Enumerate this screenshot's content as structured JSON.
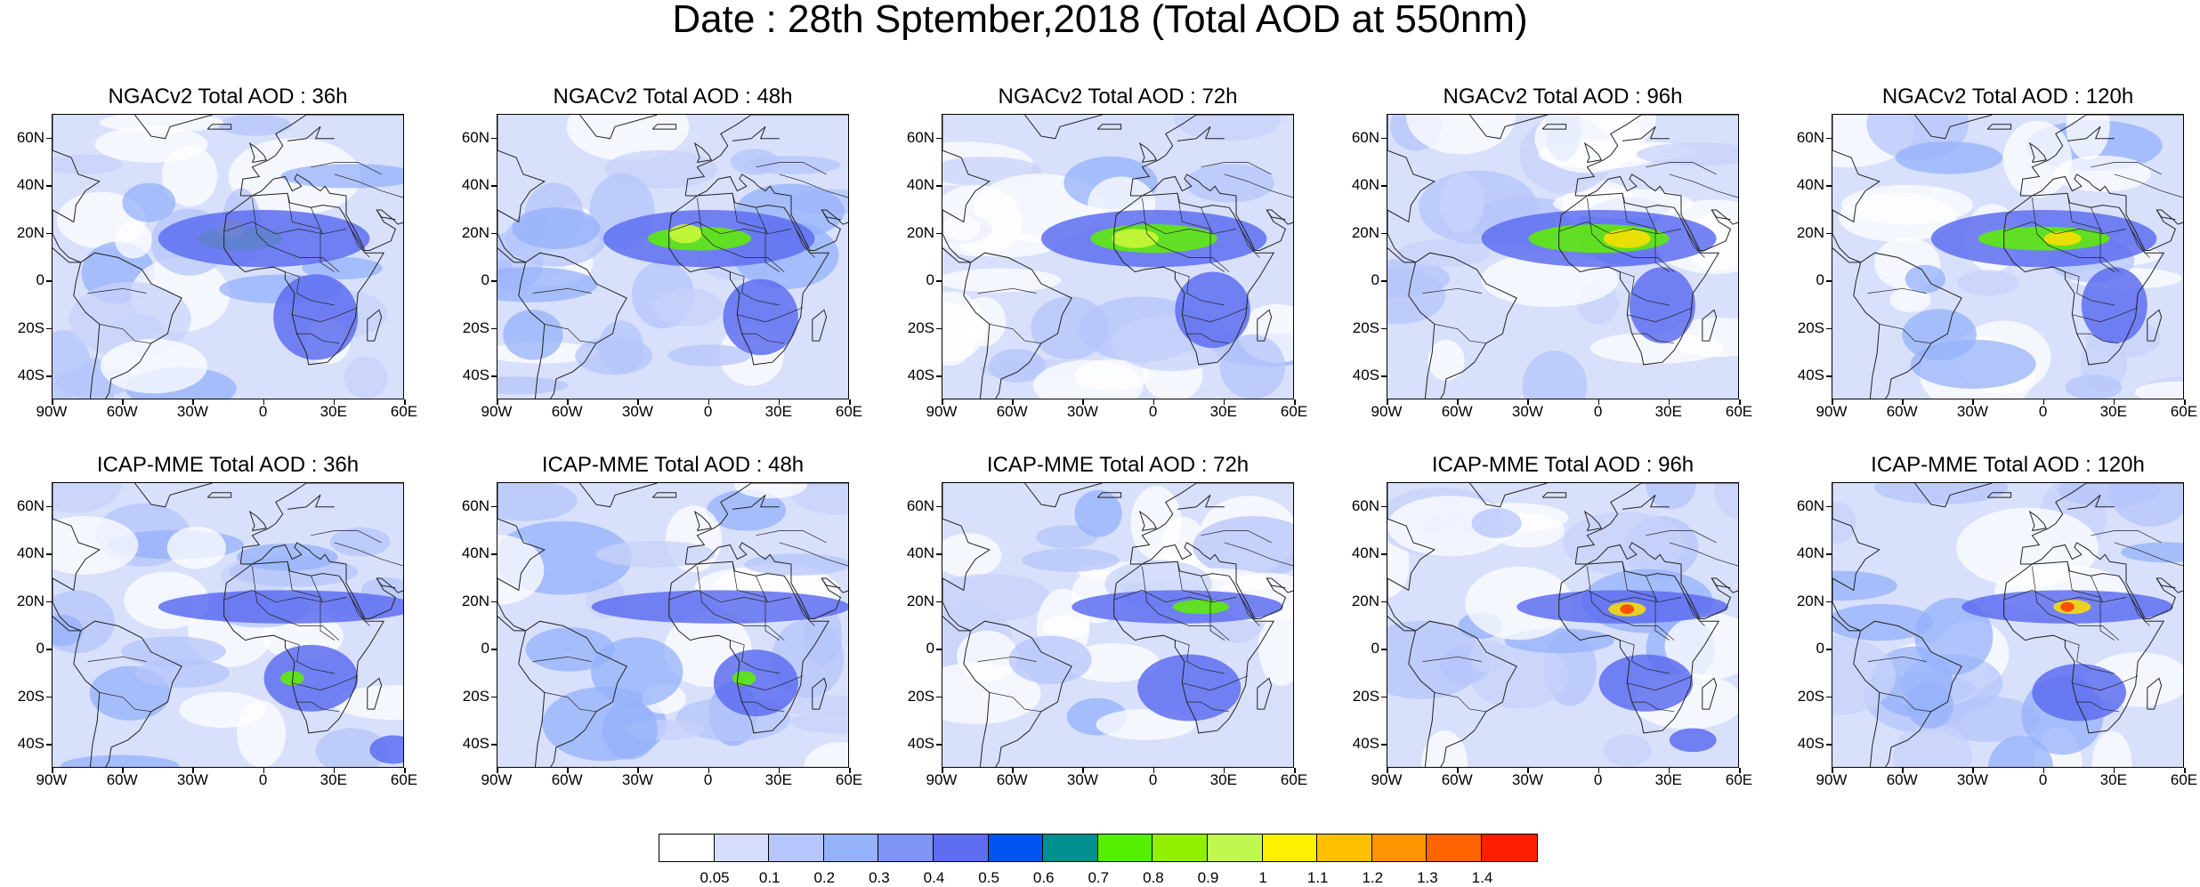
{
  "figure": {
    "title": "Date : 28th Sptember,2018 (Total AOD at 550nm)"
  },
  "panels": [
    {
      "title": "NGACv2 Total AOD : 36h",
      "model": "NGACv2",
      "forecast_hour": 36,
      "plumes": [
        {
          "c": "#5ef000",
          "x": -10,
          "y": 18,
          "rx": 18,
          "ry": 5
        },
        {
          "c": "#d0f93a",
          "x": -14,
          "y": 22,
          "rx": 6,
          "ry": 4
        },
        {
          "c": "#5e6df0",
          "x": 0,
          "y": 18,
          "rx": 45,
          "ry": 12
        },
        {
          "c": "#5e6df0",
          "x": 22,
          "y": -15,
          "rx": 18,
          "ry": 18
        }
      ]
    },
    {
      "title": "NGACv2 Total AOD : 48h",
      "model": "NGACv2",
      "forecast_hour": 48,
      "plumes": [
        {
          "c": "#5e6df0",
          "x": 0,
          "y": 18,
          "rx": 45,
          "ry": 12
        },
        {
          "c": "#5ef000",
          "x": -4,
          "y": 18,
          "rx": 22,
          "ry": 5
        },
        {
          "c": "#d0f93a",
          "x": -10,
          "y": 20,
          "rx": 7,
          "ry": 4
        },
        {
          "c": "#5e6df0",
          "x": 22,
          "y": -15,
          "rx": 16,
          "ry": 16
        }
      ]
    },
    {
      "title": "NGACv2 Total AOD : 72h",
      "model": "NGACv2",
      "forecast_hour": 72,
      "plumes": [
        {
          "c": "#5e6df0",
          "x": 0,
          "y": 18,
          "rx": 48,
          "ry": 12
        },
        {
          "c": "#5ef000",
          "x": 0,
          "y": 18,
          "rx": 27,
          "ry": 6
        },
        {
          "c": "#d0f93a",
          "x": -8,
          "y": 18,
          "rx": 10,
          "ry": 4
        },
        {
          "c": "#5e6df0",
          "x": 25,
          "y": -12,
          "rx": 16,
          "ry": 16
        }
      ]
    },
    {
      "title": "NGACv2 Total AOD : 96h",
      "model": "NGACv2",
      "forecast_hour": 96,
      "plumes": [
        {
          "c": "#5e6df0",
          "x": 0,
          "y": 18,
          "rx": 50,
          "ry": 12
        },
        {
          "c": "#5ef000",
          "x": 0,
          "y": 18,
          "rx": 30,
          "ry": 6
        },
        {
          "c": "#ffe000",
          "x": 12,
          "y": 18,
          "rx": 10,
          "ry": 4
        },
        {
          "c": "#5e6df0",
          "x": 27,
          "y": -10,
          "rx": 14,
          "ry": 16
        }
      ]
    },
    {
      "title": "NGACv2 Total AOD : 120h",
      "model": "NGACv2",
      "forecast_hour": 120,
      "plumes": [
        {
          "c": "#5e6df0",
          "x": 0,
          "y": 18,
          "rx": 48,
          "ry": 12
        },
        {
          "c": "#5ef000",
          "x": 0,
          "y": 18,
          "rx": 28,
          "ry": 5
        },
        {
          "c": "#ffe000",
          "x": 8,
          "y": 18,
          "rx": 8,
          "ry": 3
        },
        {
          "c": "#5e6df0",
          "x": 30,
          "y": -10,
          "rx": 14,
          "ry": 16
        }
      ]
    },
    {
      "title": "ICAP-MME Total AOD : 36h",
      "model": "ICAP-MME",
      "forecast_hour": 36,
      "plumes": [
        {
          "c": "#5e6df0",
          "x": 10,
          "y": 18,
          "rx": 55,
          "ry": 7
        },
        {
          "c": "#5e6df0",
          "x": 20,
          "y": -12,
          "rx": 20,
          "ry": 14
        },
        {
          "c": "#5ef000",
          "x": 12,
          "y": -12,
          "rx": 5,
          "ry": 3
        },
        {
          "c": "#5e6df0",
          "x": 55,
          "y": -42,
          "rx": 10,
          "ry": 6
        }
      ]
    },
    {
      "title": "ICAP-MME Total AOD : 48h",
      "model": "ICAP-MME",
      "forecast_hour": 48,
      "plumes": [
        {
          "c": "#5e6df0",
          "x": 5,
          "y": 18,
          "rx": 55,
          "ry": 7
        },
        {
          "c": "#5e6df0",
          "x": 20,
          "y": -14,
          "rx": 18,
          "ry": 14
        },
        {
          "c": "#5ef000",
          "x": 15,
          "y": -12,
          "rx": 5,
          "ry": 3
        }
      ]
    },
    {
      "title": "ICAP-MME Total AOD : 72h",
      "model": "ICAP-MME",
      "forecast_hour": 72,
      "plumes": [
        {
          "c": "#5e6df0",
          "x": 10,
          "y": 18,
          "rx": 45,
          "ry": 7
        },
        {
          "c": "#5ef000",
          "x": 20,
          "y": 18,
          "rx": 12,
          "ry": 3
        },
        {
          "c": "#5e6df0",
          "x": 15,
          "y": -16,
          "rx": 22,
          "ry": 14
        }
      ]
    },
    {
      "title": "ICAP-MME Total AOD : 96h",
      "model": "ICAP-MME",
      "forecast_hour": 96,
      "plumes": [
        {
          "c": "#5e6df0",
          "x": 10,
          "y": 18,
          "rx": 45,
          "ry": 7
        },
        {
          "c": "#ffe000",
          "x": 12,
          "y": 17,
          "rx": 8,
          "ry": 3
        },
        {
          "c": "#ff3a00",
          "x": 12,
          "y": 17,
          "rx": 3,
          "ry": 2
        },
        {
          "c": "#5e6df0",
          "x": 20,
          "y": -14,
          "rx": 20,
          "ry": 12
        },
        {
          "c": "#5e6df0",
          "x": 40,
          "y": -38,
          "rx": 10,
          "ry": 5
        }
      ]
    },
    {
      "title": "ICAP-MME Total AOD : 120h",
      "model": "ICAP-MME",
      "forecast_hour": 120,
      "plumes": [
        {
          "c": "#5e6df0",
          "x": 10,
          "y": 18,
          "rx": 45,
          "ry": 7
        },
        {
          "c": "#ffe000",
          "x": 12,
          "y": 18,
          "rx": 8,
          "ry": 3
        },
        {
          "c": "#ff3a00",
          "x": 10,
          "y": 18,
          "rx": 3,
          "ry": 2
        },
        {
          "c": "#5e6df0",
          "x": 15,
          "y": -18,
          "rx": 20,
          "ry": 12
        }
      ]
    }
  ],
  "axes": {
    "lat_ticks": [
      60,
      40,
      20,
      0,
      -20,
      -40
    ],
    "lat_labels": [
      "60N",
      "40N",
      "20N",
      "0",
      "20S",
      "40S"
    ],
    "lon_ticks": [
      -90,
      -60,
      -30,
      0,
      30,
      60
    ],
    "lon_labels": [
      "90W",
      "60W",
      "30W",
      "0",
      "30E",
      "60E"
    ],
    "lat_range": [
      -50,
      70
    ],
    "lon_range": [
      -90,
      60
    ]
  },
  "colorbar": {
    "colors": [
      "#ffffff",
      "#d6defb",
      "#b6c5fb",
      "#96b2fb",
      "#7f94f5",
      "#5e6df0",
      "#0055f0",
      "#009090",
      "#55f000",
      "#90f000",
      "#c0f850",
      "#fff000",
      "#ffc000",
      "#ff9600",
      "#ff6400",
      "#ff1e00"
    ],
    "labels": [
      "0.05",
      "0.1",
      "0.2",
      "0.3",
      "0.4",
      "0.5",
      "0.6",
      "0.7",
      "0.8",
      "0.9",
      "1",
      "1.1",
      "1.2",
      "1.3",
      "1.4"
    ]
  },
  "colors": {
    "coast": "#222222",
    "ocean_base": "#d8e0fb"
  }
}
